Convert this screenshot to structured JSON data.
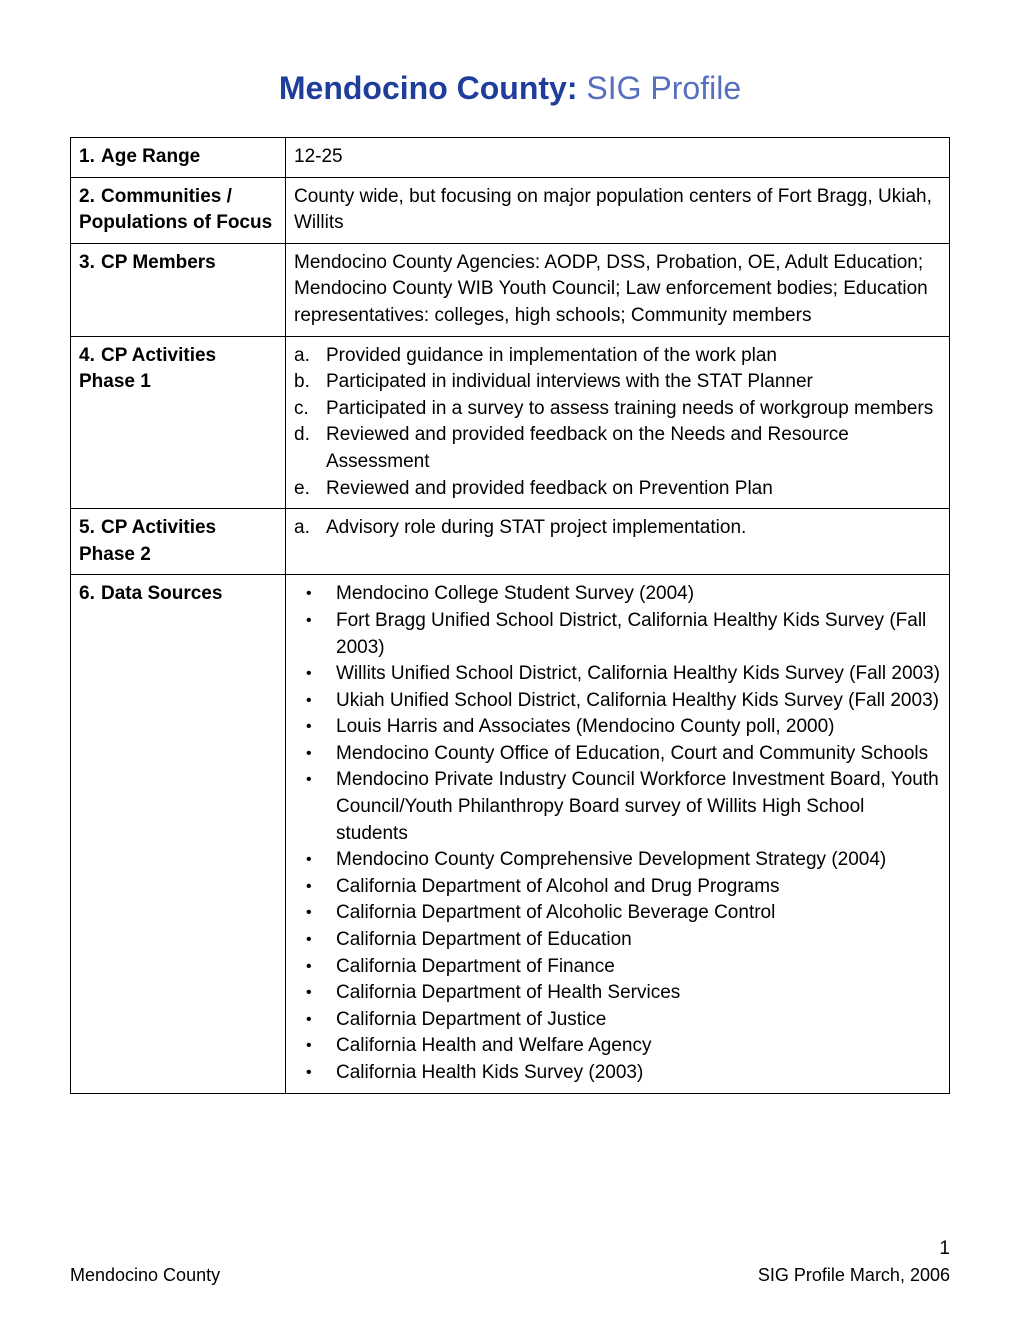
{
  "title": {
    "bold": "Mendocino County:",
    "light": "  SIG Profile"
  },
  "rows": [
    {
      "num": "1.",
      "label": "Age Range",
      "type": "text",
      "value": "12-25",
      "pad": true
    },
    {
      "num": "2.",
      "label": "Communities / Populations of Focus",
      "type": "text",
      "value": "County wide, but focusing on major population centers of Fort Bragg, Ukiah, Willits",
      "pad": true
    },
    {
      "num": "3.",
      "label": "CP Members",
      "type": "text",
      "value": "Mendocino County Agencies: AODP, DSS, Probation, OE, Adult Education; Mendocino County WIB Youth Council; Law enforcement bodies; Education representatives: colleges, high schools; Community members"
    },
    {
      "num": "4.",
      "label": "CP Activities Phase 1",
      "type": "ol",
      "pad": true,
      "items": [
        {
          "marker": "a.",
          "text": "Provided guidance in implementation of the work plan"
        },
        {
          "marker": "b.",
          "text": "Participated in individual interviews with the STAT Planner"
        },
        {
          "marker": "c.",
          "text": "Participated in a survey to assess training needs of workgroup members"
        },
        {
          "marker": "d.",
          "text": "Reviewed and provided feedback on the Needs and Resource Assessment"
        },
        {
          "marker": "e.",
          "text": "Reviewed and provided feedback on Prevention Plan"
        }
      ]
    },
    {
      "num": "5.",
      "label": "CP Activities Phase 2",
      "type": "ol",
      "pad": true,
      "items": [
        {
          "marker": "a.",
          "text": "Advisory role during STAT project implementation."
        }
      ]
    },
    {
      "num": "6.",
      "label": "Data Sources",
      "type": "ul",
      "open_bottom": true,
      "items": [
        "Mendocino College Student Survey (2004)",
        "Fort Bragg Unified School District, California Healthy Kids Survey (Fall 2003)",
        "Willits Unified School District, California Healthy Kids Survey (Fall 2003)",
        "Ukiah Unified School District, California Healthy Kids Survey (Fall 2003)",
        "Louis Harris and Associates (Mendocino County poll, 2000)",
        "Mendocino County Office of Education, Court and Community Schools",
        "Mendocino Private Industry Council Workforce Investment Board, Youth Council/Youth Philanthropy Board survey of Willits High School students",
        "Mendocino County Comprehensive Development Strategy (2004)",
        "California Department of Alcohol and Drug Programs",
        "California Department of Alcoholic Beverage Control",
        "California Department of Education",
        "California Department of Finance",
        "California Department of Health Services",
        "California Department of Justice",
        "California Health and Welfare Agency",
        "California Health Kids Survey (2003)"
      ]
    }
  ],
  "footer": {
    "left": "Mendocino County",
    "right": "SIG Profile March, 2006",
    "page": "1"
  },
  "colors": {
    "title_bold": "#1f3e9c",
    "title_light": "#5670c0",
    "border": "#000000",
    "text": "#000000",
    "background": "#ffffff"
  },
  "typography": {
    "title_fontsize": 32,
    "body_fontsize": 19,
    "footer_fontsize": 18,
    "font_family": "Arial"
  }
}
